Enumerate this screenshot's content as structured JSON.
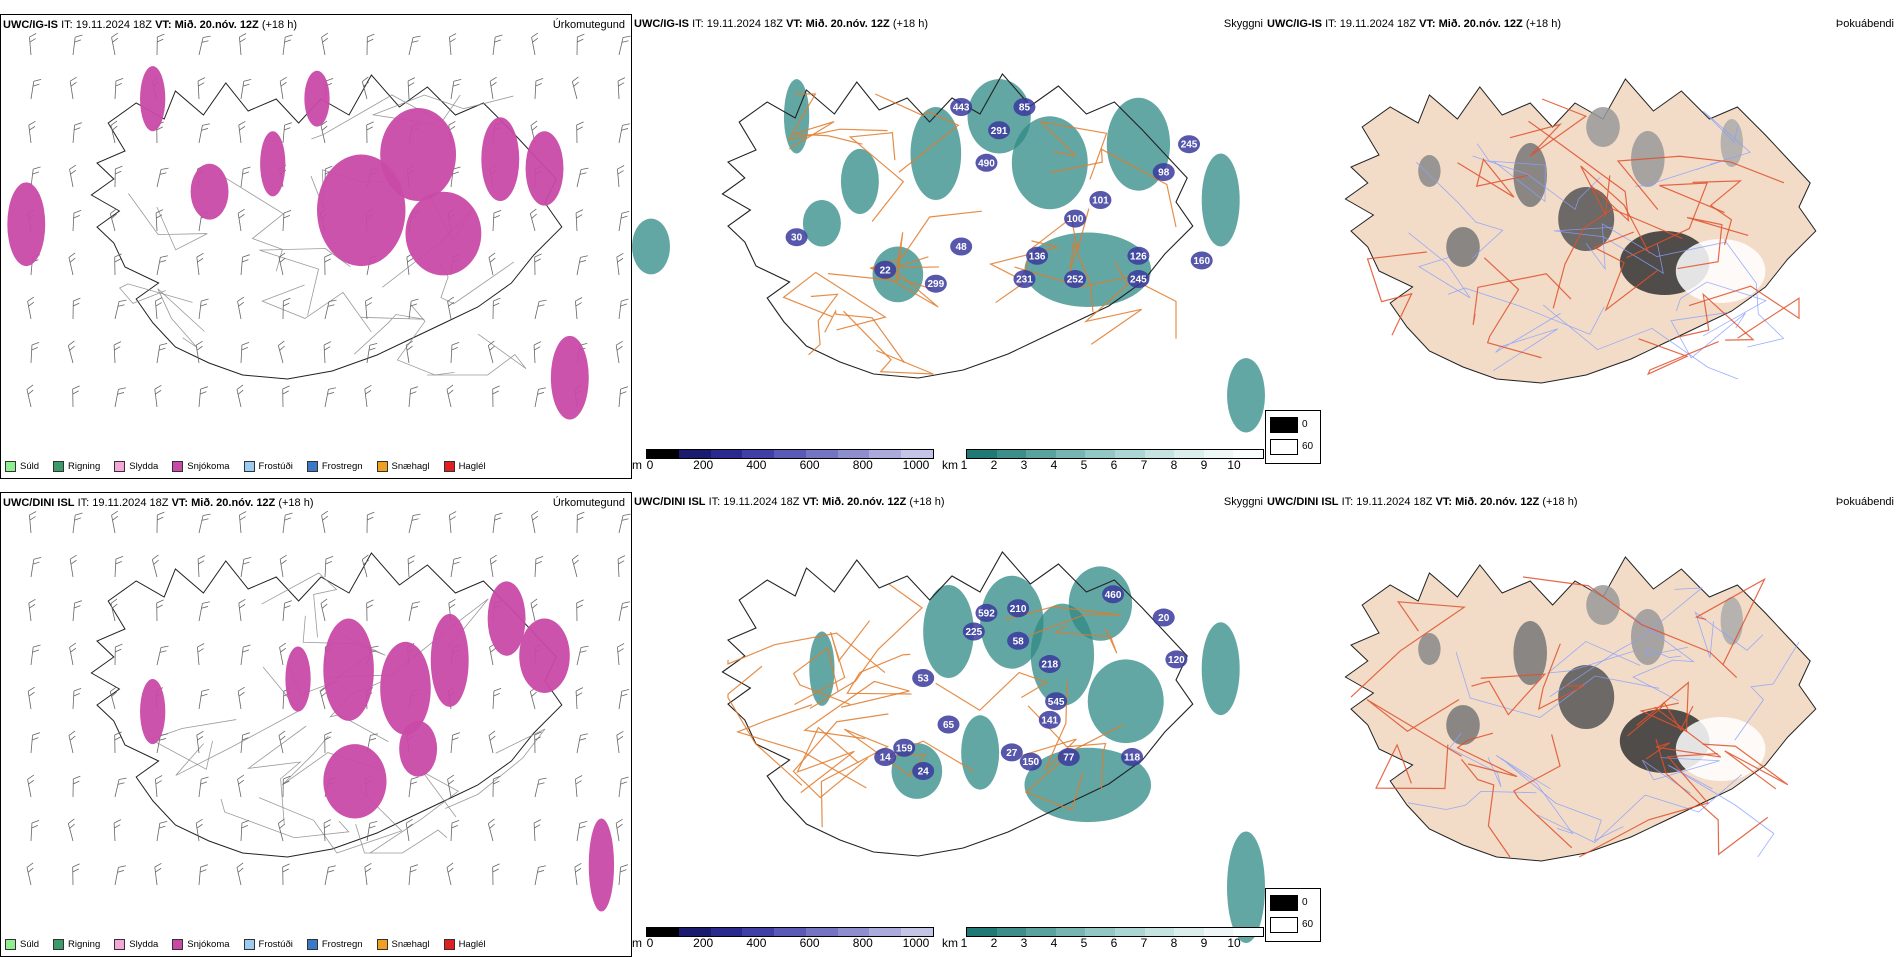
{
  "colors": {
    "snow": "#c94aa6",
    "teal": "#2f8a86",
    "cloudblue": "#3a3a9e",
    "road": "#e07a2a",
    "land": "#f2dcc8",
    "coast": "#222222",
    "fogroad": "#e0502a",
    "river": "#8aa0ff"
  },
  "rows": [
    {
      "prefix": "UWC/IG-IS",
      "it_label": "IT:",
      "it_value": "19.11.2024 18Z",
      "vt_label": "VT:",
      "vt_value": "Mið. 20.nóv. 12Z",
      "lead": "(+18 h)",
      "cloud_labels": [
        "443",
        "291",
        "490",
        "85",
        "245",
        "98",
        "30",
        "48",
        "100",
        "126",
        "136",
        "22",
        "299",
        "231",
        "252",
        "245",
        "101",
        "160"
      ]
    },
    {
      "prefix": "UWC/DINI ISL",
      "it_label": "IT:",
      "it_value": "19.11.2024 18Z",
      "vt_label": "VT:",
      "vt_value": "Mið. 20.nóv. 12Z",
      "lead": "(+18 h)",
      "cloud_labels": [
        "592",
        "210",
        "460",
        "225",
        "58",
        "20",
        "218",
        "120",
        "53",
        "545",
        "141",
        "65",
        "159",
        "14",
        "27",
        "150",
        "77",
        "118",
        "24"
      ]
    }
  ],
  "panel_titles": {
    "precip": "Úrkomutegund",
    "cloud": "Skyggni",
    "fog": "Þokuábendi"
  },
  "precip_legend": [
    {
      "label": "Súld",
      "color": "#90ee90"
    },
    {
      "label": "Rigning",
      "color": "#3a9a6a"
    },
    {
      "label": "Slydda",
      "color": "#f5a8d8"
    },
    {
      "label": "Snjókoma",
      "color": "#c94aa6"
    },
    {
      "label": "Frostúði",
      "color": "#9ccaf0"
    },
    {
      "label": "Frostregn",
      "color": "#3a78c8"
    },
    {
      "label": "Snæhagl",
      "color": "#f0a020"
    },
    {
      "label": "Haglél",
      "color": "#e02020"
    }
  ],
  "cloudbase_bar": {
    "unit": "m",
    "ticks": [
      "0",
      "200",
      "400",
      "600",
      "800",
      "1000"
    ]
  },
  "visibility_bar": {
    "unit": "km",
    "ticks": [
      "1",
      "2",
      "3",
      "4",
      "5",
      "6",
      "7",
      "8",
      "9",
      "10"
    ]
  },
  "fog_legend": {
    "low": "0",
    "high": "60"
  }
}
